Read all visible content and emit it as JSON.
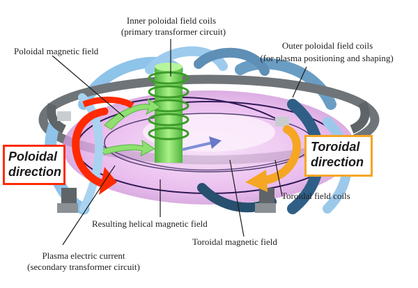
{
  "labels": {
    "inner_coils_line1": "Inner poloidal field coils",
    "inner_coils_line2": "(primary transformer circuit)",
    "poloidal_field": "Poloidal magnetic field",
    "outer_coils_line1": "Outer poloidal field coils",
    "outer_coils_line2": "(for plasma positioning and shaping)",
    "poloidal_dir_line1": "Poloidal",
    "poloidal_dir_line2": "direction",
    "toroidal_dir_line1": "Toroidal",
    "toroidal_dir_line2": "direction",
    "toroidal_coils": "Toroidal field coils",
    "helical_field": "Resulting helical magnetic field",
    "toroidal_field": "Toroidal magnetic field",
    "plasma_current_line1": "Plasma electric current",
    "plasma_current_line2": "(secondary transformer circuit)"
  },
  "colors": {
    "plasma": "#e9b6ec",
    "coil_blue": "#8ec3ea",
    "coil_grey": "#6f7478",
    "central_coil": "#7ddc5a",
    "poloidal_arrow": "#ff2a00",
    "toroidal_arrow": "#f5a623"
  }
}
